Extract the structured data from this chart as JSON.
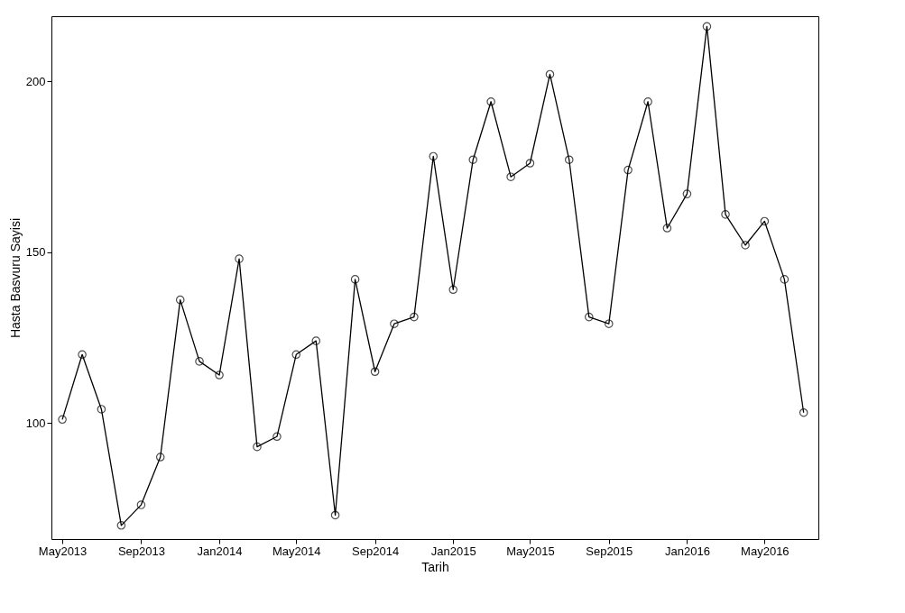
{
  "chart_data": {
    "type": "line",
    "xlabel": "Tarih",
    "ylabel": "Hasta Basvuru Sayisi",
    "x": [
      "2013-05",
      "2013-06",
      "2013-07",
      "2013-08",
      "2013-09",
      "2013-10",
      "2013-11",
      "2013-12",
      "2014-01",
      "2014-02",
      "2014-03",
      "2014-04",
      "2014-05",
      "2014-06",
      "2014-07",
      "2014-08",
      "2014-09",
      "2014-10",
      "2014-11",
      "2014-12",
      "2015-01",
      "2015-02",
      "2015-03",
      "2015-04",
      "2015-05",
      "2015-06",
      "2015-07",
      "2015-08",
      "2015-09",
      "2015-10",
      "2015-11",
      "2015-12",
      "2016-01",
      "2016-02",
      "2016-03",
      "2016-04",
      "2016-05",
      "2016-06",
      "2016-07"
    ],
    "series": [
      {
        "color": "#000000",
        "values": [
          101,
          120,
          104,
          70,
          76,
          90,
          136,
          118,
          114,
          148,
          93,
          96,
          120,
          124,
          73,
          142,
          115,
          129,
          131,
          178,
          139,
          177,
          194,
          172,
          176,
          202,
          177,
          131,
          129,
          174,
          194,
          157,
          167,
          216,
          161,
          152,
          159,
          142,
          103
        ]
      }
    ],
    "xlim": [
      "2013-04-14",
      "2016-07-24"
    ],
    "xticks": [
      {
        "value": "2013-05",
        "label": "May2013"
      },
      {
        "value": "2013-09",
        "label": "Sep2013"
      },
      {
        "value": "2014-01",
        "label": "Jan2014"
      },
      {
        "value": "2014-05",
        "label": "May2014"
      },
      {
        "value": "2014-09",
        "label": "Sep2014"
      },
      {
        "value": "2015-01",
        "label": "Jan2015"
      },
      {
        "value": "2015-05",
        "label": "May2015"
      },
      {
        "value": "2015-09",
        "label": "Sep2015"
      },
      {
        "value": "2016-01",
        "label": "Jan2016"
      },
      {
        "value": "2016-05",
        "label": "May2016"
      }
    ],
    "ylim": [
      66,
      219
    ],
    "yticks": [
      100,
      150,
      200
    ],
    "grid": false,
    "marker": "circle",
    "line_style": "solid"
  }
}
